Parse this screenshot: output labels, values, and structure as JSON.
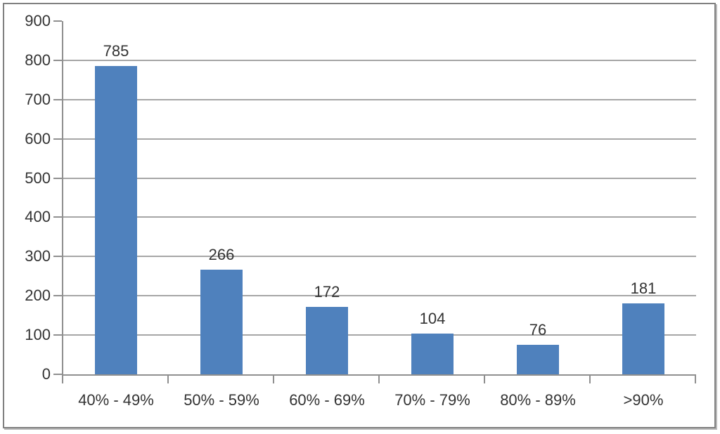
{
  "chart_data": {
    "type": "bar",
    "title": "",
    "xlabel": "",
    "ylabel": "",
    "categories": [
      "40% - 49%",
      "50% - 59%",
      "60% - 69%",
      "70% - 79%",
      "80% - 89%",
      ">90%"
    ],
    "values": [
      785,
      266,
      172,
      104,
      76,
      181
    ],
    "data_labels": [
      "785",
      "266",
      "172",
      "104",
      "76",
      "181"
    ],
    "ylim": [
      0,
      900
    ],
    "ytick_step": 100,
    "ytick_labels": [
      "0",
      "100",
      "200",
      "300",
      "400",
      "500",
      "600",
      "700",
      "800",
      "900"
    ],
    "grid": true,
    "legend": "none",
    "colors": {
      "bar": "#4F81BD",
      "gridline": "#A6A6A6",
      "axis": "#8F8F8F",
      "text": "#333333",
      "frame": "#808080",
      "frame_shadow": "#B9B9B9",
      "background": "#FFFFFF"
    }
  }
}
